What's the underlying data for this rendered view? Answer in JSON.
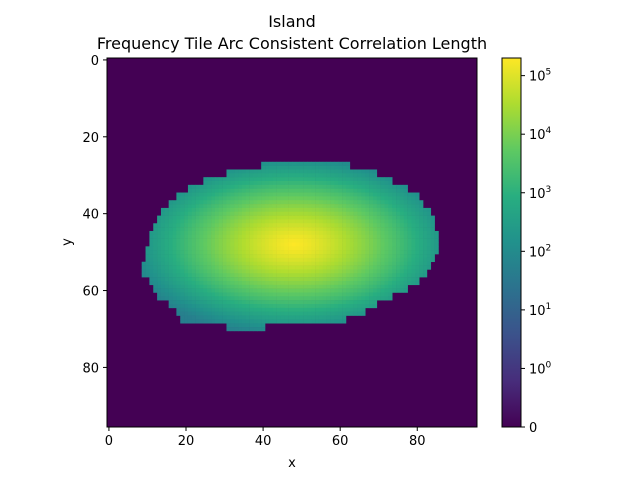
{
  "chart_data": {
    "type": "heatmap",
    "title": "Island",
    "subtitle": "Frequency Tile Arc Consistent Correlation Length",
    "xlabel": "x",
    "ylabel": "y",
    "grid": false,
    "colormap": "viridis",
    "xlim": [
      -0.5,
      95.5
    ],
    "ylim": [
      95.5,
      -0.5
    ],
    "x_ticks": [
      0,
      20,
      40,
      60,
      80
    ],
    "y_ticks": [
      0,
      20,
      40,
      60,
      80
    ],
    "background_value": 0,
    "colorbar": {
      "scale": "symlog",
      "range": [
        0,
        200000
      ],
      "ticks": [
        {
          "value": 0,
          "label": "0"
        },
        {
          "value": 1,
          "label": "10^0"
        },
        {
          "value": 10,
          "label": "10^1"
        },
        {
          "value": 100,
          "label": "10^2"
        },
        {
          "value": 1000,
          "label": "10^3"
        },
        {
          "value": 10000,
          "label": "10^4"
        },
        {
          "value": 100000,
          "label": "10^5"
        }
      ]
    },
    "island": {
      "peak_value": 200000,
      "peak_x": 48,
      "peak_y": 48,
      "edge_value": 50,
      "boundary_rows": [
        {
          "y": 27,
          "x0": 40,
          "x1": 62
        },
        {
          "y": 29,
          "x0": 31,
          "x1": 69
        },
        {
          "y": 31,
          "x0": 25,
          "x1": 73
        },
        {
          "y": 33,
          "x0": 21,
          "x1": 77
        },
        {
          "y": 35,
          "x0": 18,
          "x1": 80
        },
        {
          "y": 37,
          "x0": 16,
          "x1": 81
        },
        {
          "y": 39,
          "x0": 14,
          "x1": 83
        },
        {
          "y": 41,
          "x0": 13,
          "x1": 84
        },
        {
          "y": 43,
          "x0": 12,
          "x1": 84
        },
        {
          "y": 45,
          "x0": 11,
          "x1": 85
        },
        {
          "y": 47,
          "x0": 11,
          "x1": 85
        },
        {
          "y": 49,
          "x0": 10,
          "x1": 85
        },
        {
          "y": 51,
          "x0": 10,
          "x1": 84
        },
        {
          "y": 53,
          "x0": 9,
          "x1": 83
        },
        {
          "y": 55,
          "x0": 9,
          "x1": 82
        },
        {
          "y": 57,
          "x0": 11,
          "x1": 80
        },
        {
          "y": 59,
          "x0": 12,
          "x1": 77
        },
        {
          "y": 61,
          "x0": 13,
          "x1": 73
        },
        {
          "y": 63,
          "x0": 16,
          "x1": 69
        },
        {
          "y": 65,
          "x0": 18,
          "x1": 66
        },
        {
          "y": 67,
          "x0": 19,
          "x1": 61
        },
        {
          "y": 69,
          "x0": 31,
          "x1": 40
        }
      ]
    }
  }
}
